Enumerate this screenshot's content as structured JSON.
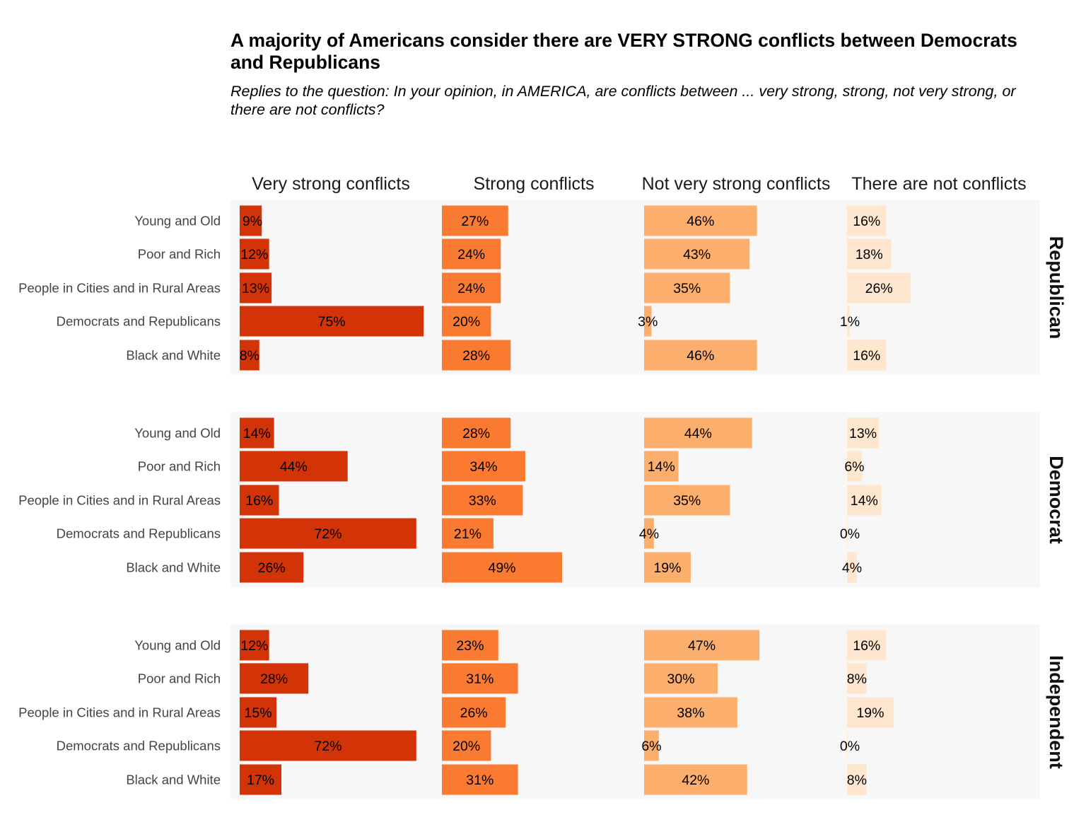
{
  "title": "A majority of Americans consider there are VERY STRONG conflicts between Democrats and Republicans",
  "subtitle": "Replies to the question: In your opinion, in AMERICA, are conflicts between ... very strong, strong, not very strong, or there are not conflicts?",
  "chart_data": {
    "type": "bar",
    "orientation": "horizontal",
    "columns": [
      "Very strong conflicts",
      "Strong conflicts",
      "Not very strong conflicts",
      "There are not conflicts"
    ],
    "categories": [
      "Young and Old",
      "Poor and Rich",
      "People in Cities and in Rural Areas",
      "Democrats and Republicans",
      "Black and White"
    ],
    "colors": [
      "#D23307",
      "#FB7A31",
      "#FCAE6C",
      "#FEE6CF"
    ],
    "panel_background": "#F7F7F7",
    "xlim": [
      0,
      100
    ],
    "facets": [
      {
        "name": "Republican",
        "values": [
          [
            9,
            27,
            46,
            16
          ],
          [
            12,
            24,
            43,
            18
          ],
          [
            13,
            24,
            35,
            26
          ],
          [
            75,
            20,
            3,
            1
          ],
          [
            8,
            28,
            46,
            16
          ]
        ]
      },
      {
        "name": "Democrat",
        "values": [
          [
            14,
            28,
            44,
            13
          ],
          [
            44,
            34,
            14,
            6
          ],
          [
            16,
            33,
            35,
            14
          ],
          [
            72,
            21,
            4,
            0
          ],
          [
            26,
            49,
            19,
            4
          ]
        ]
      },
      {
        "name": "Independent",
        "values": [
          [
            12,
            23,
            47,
            16
          ],
          [
            28,
            31,
            30,
            8
          ],
          [
            15,
            26,
            38,
            19
          ],
          [
            72,
            20,
            6,
            0
          ],
          [
            17,
            31,
            42,
            8
          ]
        ]
      }
    ]
  }
}
